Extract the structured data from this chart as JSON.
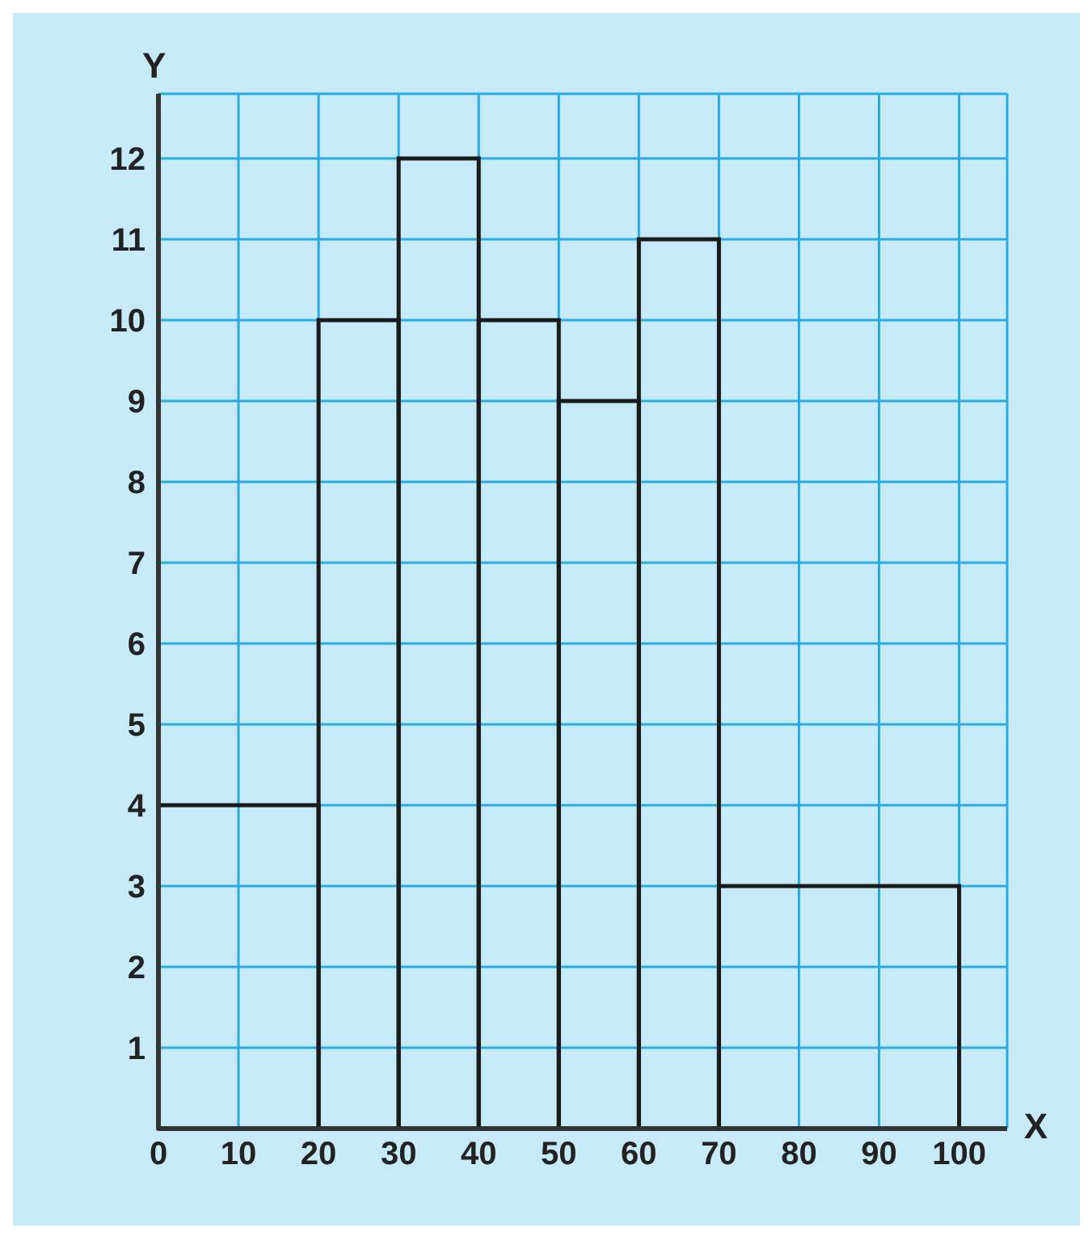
{
  "chart_data": {
    "type": "histogram",
    "xlabel": "X",
    "ylabel": "Y",
    "bins": [
      0,
      20,
      30,
      40,
      50,
      60,
      70,
      100
    ],
    "values": [
      4,
      10,
      12,
      10,
      9,
      11,
      3
    ],
    "color": "#1a1a1a",
    "xlim": [
      0,
      106
    ],
    "ylim": [
      0,
      12.8
    ],
    "xticks": [
      0,
      10,
      20,
      30,
      40,
      50,
      60,
      70,
      80,
      90,
      100
    ],
    "yticks": [
      {
        "value": 0,
        "label": null
      },
      1,
      2,
      3,
      4,
      5,
      6,
      7,
      8,
      9,
      10,
      11,
      12
    ],
    "grid": true
  }
}
